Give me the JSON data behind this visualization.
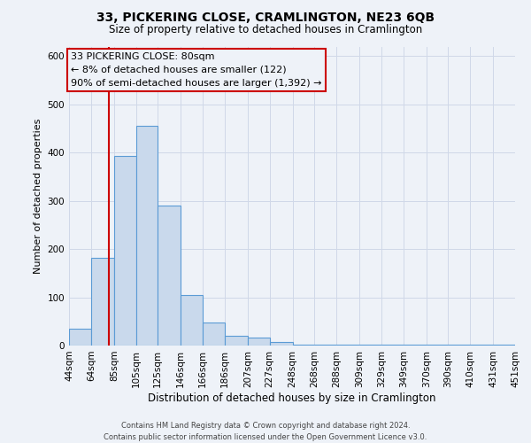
{
  "title": "33, PICKERING CLOSE, CRAMLINGTON, NE23 6QB",
  "subtitle": "Size of property relative to detached houses in Cramlington",
  "xlabel": "Distribution of detached houses by size in Cramlington",
  "ylabel": "Number of detached properties",
  "footer_line1": "Contains HM Land Registry data © Crown copyright and database right 2024.",
  "footer_line2": "Contains public sector information licensed under the Open Government Licence v3.0.",
  "bin_edges": [
    44,
    64,
    85,
    105,
    125,
    146,
    166,
    186,
    207,
    227,
    248,
    268,
    288,
    309,
    329,
    349,
    370,
    390,
    410,
    431,
    451
  ],
  "bin_heights": [
    35,
    182,
    394,
    456,
    291,
    104,
    48,
    20,
    16,
    8,
    2,
    1,
    1,
    1,
    1,
    1,
    1,
    1,
    1,
    1
  ],
  "bar_facecolor": "#c9d9ec",
  "bar_edgecolor": "#5b9bd5",
  "grid_color": "#d0d8e8",
  "background_color": "#eef2f8",
  "property_line_x": 80,
  "property_line_color": "#cc0000",
  "annotation_text_line1": "33 PICKERING CLOSE: 80sqm",
  "annotation_text_line2": "← 8% of detached houses are smaller (122)",
  "annotation_text_line3": "90% of semi-detached houses are larger (1,392) →",
  "annotation_box_edgecolor": "#cc0000",
  "ylim": [
    0,
    620
  ],
  "tick_labels": [
    "44sqm",
    "64sqm",
    "85sqm",
    "105sqm",
    "125sqm",
    "146sqm",
    "166sqm",
    "186sqm",
    "207sqm",
    "227sqm",
    "248sqm",
    "268sqm",
    "288sqm",
    "309sqm",
    "329sqm",
    "349sqm",
    "370sqm",
    "390sqm",
    "410sqm",
    "431sqm",
    "451sqm"
  ]
}
